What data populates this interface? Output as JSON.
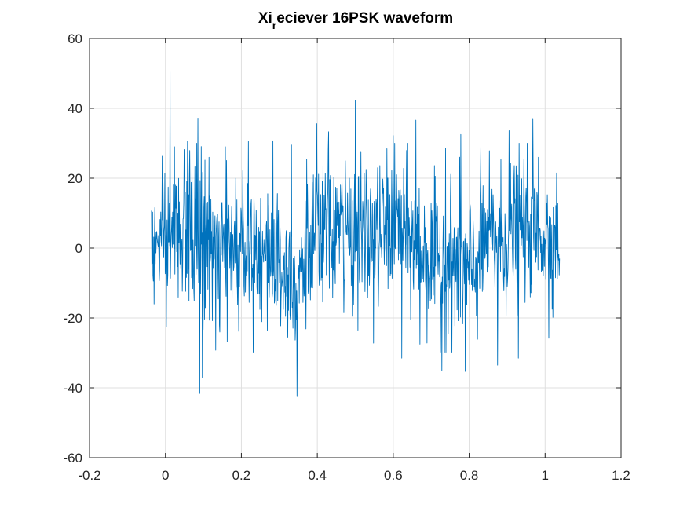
{
  "chart_data": {
    "type": "line",
    "title_main": "Xi",
    "title_subscript": "r",
    "title_rest": "eciever 16PSK waveform",
    "xlabel": "",
    "ylabel": "",
    "xlim": [
      -0.2,
      1.2
    ],
    "ylim": [
      -60,
      60
    ],
    "x_ticks": [
      -0.2,
      0,
      0.2,
      0.4,
      0.6,
      0.8,
      1,
      1.2
    ],
    "x_tick_labels": [
      "-0.2",
      "0",
      "0.2",
      "0.4",
      "0.6",
      "0.8",
      "1",
      "1.2"
    ],
    "y_ticks": [
      -60,
      -40,
      -20,
      0,
      20,
      40,
      60
    ],
    "y_tick_labels": [
      "-60",
      "-40",
      "-20",
      "0",
      "20",
      "40",
      "60"
    ],
    "grid": true,
    "line_color": "#0072BD",
    "series": [
      {
        "x_start": -0.0368,
        "x_end": 1.0381,
        "sample_count": 1100,
        "envelope": {
          "x": [
            -0.037,
            0.0,
            0.05,
            0.1,
            0.15,
            0.2,
            0.25,
            0.3,
            0.35,
            0.4,
            0.45,
            0.5,
            0.55,
            0.6,
            0.65,
            0.7,
            0.75,
            0.8,
            0.85,
            0.9,
            0.95,
            1.0,
            1.038
          ],
          "mean": [
            0,
            2,
            6,
            2,
            -3,
            4,
            0,
            -5,
            -7,
            3,
            6,
            4,
            2,
            8,
            3,
            -4,
            -4,
            -8,
            2,
            3,
            7,
            4,
            1
          ],
          "spread": [
            6,
            9,
            11,
            12,
            10,
            10,
            10,
            10,
            10,
            10,
            10,
            10,
            10,
            10,
            10,
            10,
            11,
            11,
            10,
            10,
            10,
            9,
            6
          ]
        },
        "peaks": [
          {
            "x": -0.0368,
            "y": 10.7
          },
          {
            "x": -0.03,
            "y": -16
          },
          {
            "x": 0.002,
            "y": -22.5
          },
          {
            "x": 0.012,
            "y": 50.5
          },
          {
            "x": 0.024,
            "y": 29
          },
          {
            "x": 0.058,
            "y": 30.6
          },
          {
            "x": 0.062,
            "y": -15
          },
          {
            "x": 0.085,
            "y": 37.2
          },
          {
            "x": 0.09,
            "y": -41.6
          },
          {
            "x": 0.097,
            "y": -37
          },
          {
            "x": 0.115,
            "y": 26
          },
          {
            "x": 0.132,
            "y": -29.2
          },
          {
            "x": 0.158,
            "y": 29
          },
          {
            "x": 0.193,
            "y": -23.8
          },
          {
            "x": 0.218,
            "y": 30.5
          },
          {
            "x": 0.268,
            "y": -23.5
          },
          {
            "x": 0.283,
            "y": 30.7
          },
          {
            "x": 0.322,
            "y": -25.5
          },
          {
            "x": 0.332,
            "y": 29.5
          },
          {
            "x": 0.347,
            "y": -42.5
          },
          {
            "x": 0.372,
            "y": 25.5
          },
          {
            "x": 0.398,
            "y": 35.6
          },
          {
            "x": 0.43,
            "y": 33.3
          },
          {
            "x": 0.47,
            "y": -18.5
          },
          {
            "x": 0.5,
            "y": 42.2
          },
          {
            "x": 0.548,
            "y": -27.2
          },
          {
            "x": 0.6,
            "y": 32.2
          },
          {
            "x": 0.622,
            "y": -31.5
          },
          {
            "x": 0.66,
            "y": 36.6
          },
          {
            "x": 0.67,
            "y": -27.5
          },
          {
            "x": 0.728,
            "y": -35
          },
          {
            "x": 0.738,
            "y": 28.5
          },
          {
            "x": 0.778,
            "y": 32.5
          },
          {
            "x": 0.79,
            "y": -35.3
          },
          {
            "x": 0.83,
            "y": 20
          },
          {
            "x": 0.875,
            "y": -33.5
          },
          {
            "x": 0.905,
            "y": 33.6
          },
          {
            "x": 0.93,
            "y": -31.5
          },
          {
            "x": 0.968,
            "y": 37.1
          },
          {
            "x": 0.982,
            "y": 26
          },
          {
            "x": 1.01,
            "y": -25.8
          },
          {
            "x": 1.03,
            "y": 21.5
          },
          {
            "x": 1.038,
            "y": -3
          }
        ]
      }
    ]
  }
}
